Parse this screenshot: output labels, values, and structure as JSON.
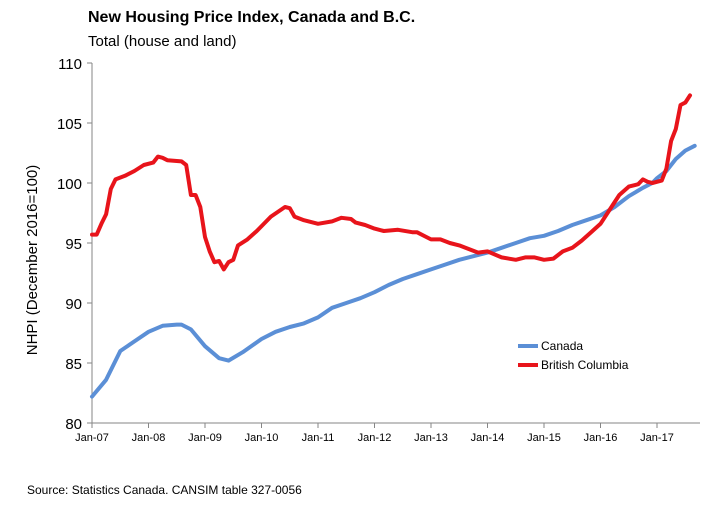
{
  "chart_data": {
    "type": "line",
    "title": "New Housing Price Index, Canada and B.C.",
    "subtitle": "Total (house and land)",
    "ylabel": "NHPI (December 2016=100)",
    "xlabel": "",
    "ylim": [
      80,
      110
    ],
    "yticks": [
      80,
      85,
      90,
      95,
      100,
      105,
      110
    ],
    "x_start": "Jan-07",
    "x_end": "Sep-17",
    "xtick_labels": [
      "Jan-07",
      "Jan-08",
      "Jan-09",
      "Jan-10",
      "Jan-11",
      "Jan-12",
      "Jan-13",
      "Jan-14",
      "Jan-15",
      "Jan-16",
      "Jan-17"
    ],
    "grid": false,
    "legend_position": "right",
    "series": [
      {
        "name": "Canada",
        "color": "#5b8fd6",
        "points": [
          [
            "Jan-07",
            82.2
          ],
          [
            "Apr-07",
            83.6
          ],
          [
            "Jul-07",
            86.0
          ],
          [
            "Oct-07",
            86.8
          ],
          [
            "Jan-08",
            87.6
          ],
          [
            "Apr-08",
            88.1
          ],
          [
            "Jul-08",
            88.2
          ],
          [
            "Aug-08",
            88.2
          ],
          [
            "Oct-08",
            87.8
          ],
          [
            "Jan-09",
            86.4
          ],
          [
            "Apr-09",
            85.4
          ],
          [
            "Jun-09",
            85.2
          ],
          [
            "Sep-09",
            85.9
          ],
          [
            "Jan-10",
            87.0
          ],
          [
            "Apr-10",
            87.6
          ],
          [
            "Jul-10",
            88.0
          ],
          [
            "Oct-10",
            88.3
          ],
          [
            "Jan-11",
            88.8
          ],
          [
            "Apr-11",
            89.6
          ],
          [
            "Jul-11",
            90.0
          ],
          [
            "Oct-11",
            90.4
          ],
          [
            "Jan-12",
            90.9
          ],
          [
            "Apr-12",
            91.5
          ],
          [
            "Jul-12",
            92.0
          ],
          [
            "Oct-12",
            92.4
          ],
          [
            "Jan-13",
            92.8
          ],
          [
            "Apr-13",
            93.2
          ],
          [
            "Jul-13",
            93.6
          ],
          [
            "Oct-13",
            93.9
          ],
          [
            "Jan-14",
            94.2
          ],
          [
            "Apr-14",
            94.6
          ],
          [
            "Jul-14",
            95.0
          ],
          [
            "Oct-14",
            95.4
          ],
          [
            "Jan-15",
            95.6
          ],
          [
            "Apr-15",
            96.0
          ],
          [
            "Jul-15",
            96.5
          ],
          [
            "Oct-15",
            96.9
          ],
          [
            "Jan-16",
            97.3
          ],
          [
            "Apr-16",
            98.0
          ],
          [
            "Jul-16",
            98.9
          ],
          [
            "Oct-16",
            99.6
          ],
          [
            "Dec-16",
            100.0
          ],
          [
            "Jan-17",
            100.4
          ],
          [
            "Mar-17",
            101.0
          ],
          [
            "May-17",
            102.0
          ],
          [
            "Jul-17",
            102.7
          ],
          [
            "Sep-17",
            103.1
          ]
        ]
      },
      {
        "name": "British Columbia",
        "color": "#e8141b",
        "points": [
          [
            "Jan-07",
            95.7
          ],
          [
            "Feb-07",
            95.7
          ],
          [
            "Mar-07",
            96.6
          ],
          [
            "Apr-07",
            97.4
          ],
          [
            "May-07",
            99.5
          ],
          [
            "Jun-07",
            100.3
          ],
          [
            "Aug-07",
            100.6
          ],
          [
            "Oct-07",
            101.0
          ],
          [
            "Dec-07",
            101.5
          ],
          [
            "Feb-08",
            101.7
          ],
          [
            "Mar-08",
            102.2
          ],
          [
            "Apr-08",
            102.1
          ],
          [
            "May-08",
            101.9
          ],
          [
            "Aug-08",
            101.8
          ],
          [
            "Sep-08",
            101.5
          ],
          [
            "Oct-08",
            99.0
          ],
          [
            "Nov-08",
            99.0
          ],
          [
            "Dec-08",
            98.0
          ],
          [
            "Jan-09",
            95.5
          ],
          [
            "Feb-09",
            94.3
          ],
          [
            "Mar-09",
            93.4
          ],
          [
            "Apr-09",
            93.5
          ],
          [
            "May-09",
            92.8
          ],
          [
            "Jun-09",
            93.4
          ],
          [
            "Jul-09",
            93.6
          ],
          [
            "Aug-09",
            94.8
          ],
          [
            "Oct-09",
            95.3
          ],
          [
            "Dec-09",
            96.0
          ],
          [
            "Mar-10",
            97.2
          ],
          [
            "Jun-10",
            98.0
          ],
          [
            "Jul-10",
            97.9
          ],
          [
            "Aug-10",
            97.2
          ],
          [
            "Oct-10",
            96.9
          ],
          [
            "Jan-11",
            96.6
          ],
          [
            "Apr-11",
            96.8
          ],
          [
            "Jun-11",
            97.1
          ],
          [
            "Aug-11",
            97.0
          ],
          [
            "Sep-11",
            96.7
          ],
          [
            "Nov-11",
            96.5
          ],
          [
            "Jan-12",
            96.2
          ],
          [
            "Mar-12",
            96.0
          ],
          [
            "Jun-12",
            96.1
          ],
          [
            "Sep-12",
            95.9
          ],
          [
            "Oct-12",
            95.9
          ],
          [
            "Dec-12",
            95.5
          ],
          [
            "Jan-13",
            95.3
          ],
          [
            "Mar-13",
            95.3
          ],
          [
            "May-13",
            95.0
          ],
          [
            "Jul-13",
            94.8
          ],
          [
            "Sep-13",
            94.5
          ],
          [
            "Nov-13",
            94.2
          ],
          [
            "Jan-14",
            94.3
          ],
          [
            "Apr-14",
            93.8
          ],
          [
            "Jul-14",
            93.6
          ],
          [
            "Sep-14",
            93.8
          ],
          [
            "Nov-14",
            93.8
          ],
          [
            "Jan-15",
            93.6
          ],
          [
            "Mar-15",
            93.7
          ],
          [
            "May-15",
            94.3
          ],
          [
            "Jul-15",
            94.6
          ],
          [
            "Sep-15",
            95.2
          ],
          [
            "Nov-15",
            95.9
          ],
          [
            "Jan-16",
            96.6
          ],
          [
            "Mar-16",
            97.8
          ],
          [
            "May-16",
            99.0
          ],
          [
            "Jul-16",
            99.7
          ],
          [
            "Sep-16",
            99.9
          ],
          [
            "Oct-16",
            100.3
          ],
          [
            "Nov-16",
            100.1
          ],
          [
            "Dec-16",
            100.0
          ],
          [
            "Feb-17",
            100.2
          ],
          [
            "Mar-17",
            101.2
          ],
          [
            "Apr-17",
            103.5
          ],
          [
            "May-17",
            104.5
          ],
          [
            "Jun-17",
            106.5
          ],
          [
            "Jul-17",
            106.7
          ],
          [
            "Aug-17",
            107.3
          ]
        ]
      }
    ]
  },
  "source": "Source:  Statistics Canada. CANSIM table  327-0056"
}
